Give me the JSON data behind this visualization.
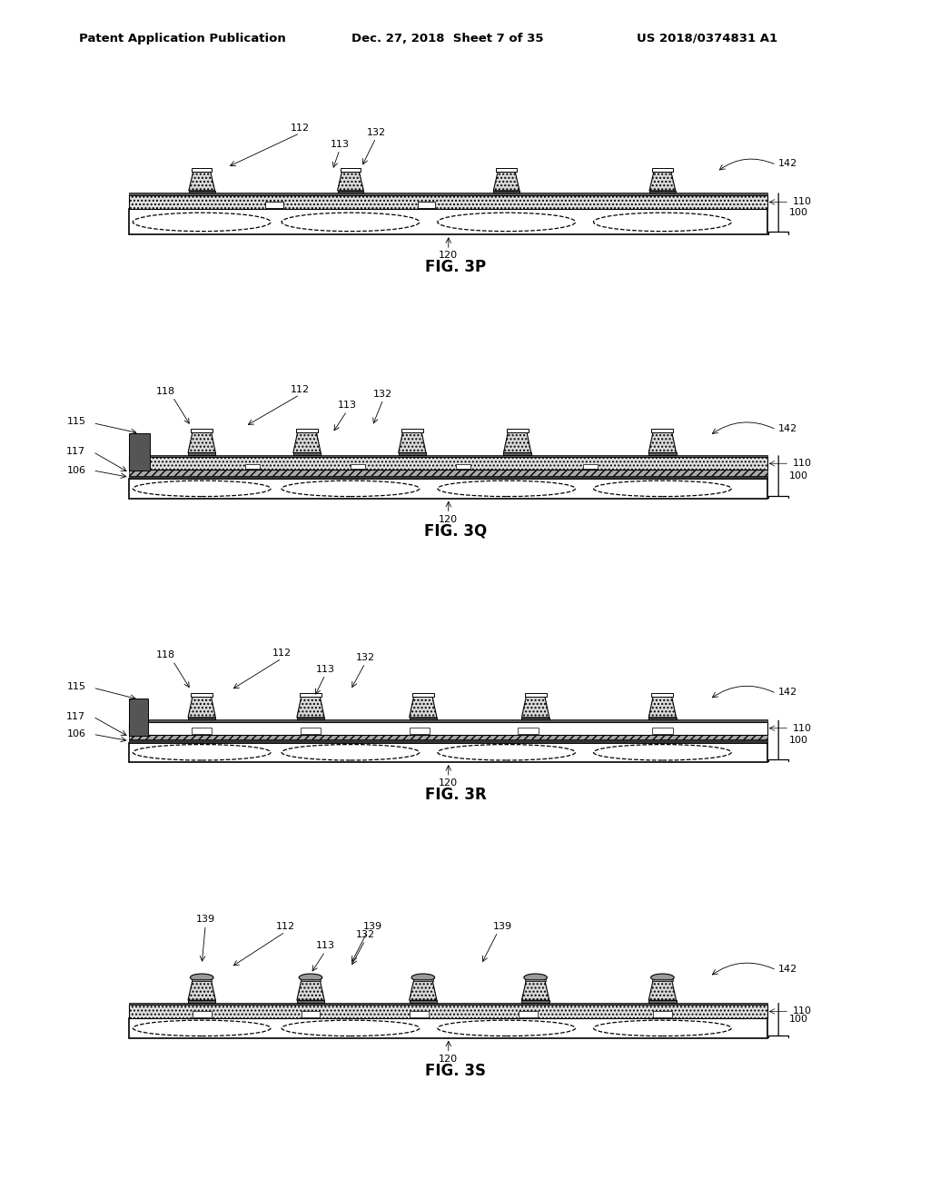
{
  "title_line1": "Patent Application Publication",
  "title_line2": "Dec. 27, 2018  Sheet 7 of 35",
  "title_line3": "US 2018/0374831 A1",
  "fig_labels": [
    "FIG. 3P",
    "FIG. 3Q",
    "FIG. 3R",
    "FIG. 3S"
  ],
  "background": "#ffffff",
  "header_fontsize": 9.5,
  "fig_label_fontsize": 12,
  "label_fontsize": 8,
  "hatch_dot": "....",
  "hatch_diag": "////",
  "gray_light": "#d0d0d0",
  "gray_med": "#888888",
  "gray_dark": "#444444",
  "gray_darkest": "#222222"
}
